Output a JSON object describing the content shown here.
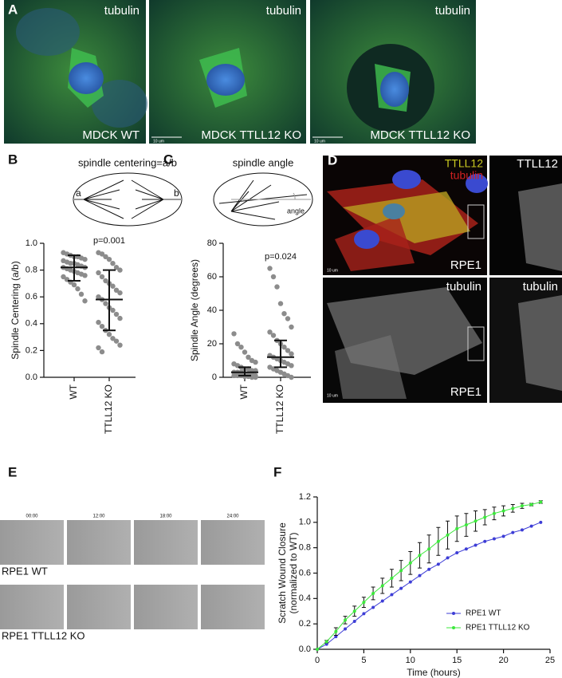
{
  "figure": {
    "panel_labels": [
      "A",
      "B",
      "C",
      "D",
      "E",
      "F"
    ],
    "panel_a": {
      "images": [
        {
          "stain": "tubulin",
          "cell": "MDCK WT"
        },
        {
          "stain": "tubulin",
          "cell": "MDCK TTLL12 KO",
          "scale": "10 um"
        },
        {
          "stain": "tubulin",
          "cell": "MDCK TTLL12 KO",
          "scale": "10 um"
        }
      ]
    },
    "panel_b_diagram": {
      "title": "spindle centering=a/b",
      "left": "a",
      "right": "b"
    },
    "panel_c_diagram": {
      "title": "spindle angle",
      "angle": "angle"
    },
    "panel_d": {
      "top_left": {
        "stains": [
          "TTLL12",
          "tubulin"
        ],
        "cell": "RPE1",
        "scale": "10 um"
      },
      "top_right": {
        "stain": "TTLL12"
      },
      "bottom_left": {
        "stain": "tubulin",
        "cell": "RPE1",
        "scale": "10 um"
      },
      "bottom_right": {
        "stain": "tubulin"
      }
    },
    "panel_e": {
      "times": [
        "00:00",
        "12:00",
        "18:00",
        "24:00"
      ],
      "rows": [
        "RPE1 WT",
        "RPE1 TTLL12 KO"
      ]
    }
  },
  "chart_data": [
    {
      "type": "strip",
      "y_label": "Spindle Centering (a/b)",
      "categories": [
        "WT",
        "TTLL12 KO"
      ],
      "annotation": "p=0.001",
      "color": "#8c8c8c",
      "points": [
        [
          0.93,
          0.92,
          0.91,
          0.9,
          0.9,
          0.89,
          0.88,
          0.87,
          0.86,
          0.85,
          0.85,
          0.84,
          0.83,
          0.82,
          0.82,
          0.81,
          0.8,
          0.79,
          0.78,
          0.77,
          0.76,
          0.75,
          0.73,
          0.71,
          0.69,
          0.66,
          0.62,
          0.57
        ],
        [
          0.93,
          0.92,
          0.9,
          0.88,
          0.85,
          0.82,
          0.8,
          0.78,
          0.75,
          0.72,
          0.7,
          0.68,
          0.65,
          0.63,
          0.6,
          0.58,
          0.55,
          0.52,
          0.5,
          0.47,
          0.44,
          0.41,
          0.38,
          0.35,
          0.32,
          0.29,
          0.27,
          0.24,
          0.22,
          0.19
        ]
      ],
      "center": [
        0.82,
        0.58
      ],
      "lower": [
        0.72,
        0.35
      ],
      "upper": [
        0.91,
        0.8
      ],
      "ylim": [
        0,
        1
      ],
      "yticks": [
        {
          "value": 0,
          "label": "0.0"
        },
        0.2,
        0.4,
        0.6,
        0.8,
        {
          "value": 1,
          "label": "1.0"
        }
      ]
    },
    {
      "type": "strip",
      "y_label": "Spindle Angle (degrees)",
      "categories": [
        "WT",
        "TTLL12 KO"
      ],
      "annotation": "p=0.024",
      "color": "#8c8c8c",
      "points": [
        [
          26,
          20,
          18,
          15,
          12,
          10,
          9,
          8,
          7,
          6,
          5,
          5,
          4,
          4,
          3,
          3,
          3,
          2,
          2,
          2,
          1,
          1,
          1,
          1,
          0.5,
          0.5,
          0,
          0
        ],
        [
          65,
          60,
          54,
          44,
          38,
          35,
          30,
          27,
          25,
          22,
          20,
          18,
          16,
          14,
          13,
          12,
          11,
          10,
          9,
          8,
          7,
          6,
          5,
          4,
          3,
          2,
          1,
          0
        ]
      ],
      "center": [
        3,
        12
      ],
      "lower": [
        1,
        6
      ],
      "upper": [
        6,
        22
      ],
      "ylim": [
        0,
        80
      ],
      "yticks": [
        0,
        20,
        40,
        60,
        80
      ]
    },
    {
      "type": "line",
      "x_label": "Time (hours)",
      "y_label": [
        "Scratch Wound Closure",
        "(normalized to WT)"
      ],
      "x": [
        0,
        1,
        2,
        3,
        4,
        5,
        6,
        7,
        8,
        9,
        10,
        11,
        12,
        13,
        14,
        15,
        16,
        17,
        18,
        19,
        20,
        21,
        22,
        23,
        24
      ],
      "series": [
        {
          "name": "RPE1 WT",
          "color": "#3d3dd6",
          "values": [
            0,
            0.04,
            0.1,
            0.16,
            0.22,
            0.28,
            0.33,
            0.38,
            0.43,
            0.48,
            0.53,
            0.58,
            0.63,
            0.67,
            0.72,
            0.76,
            0.79,
            0.82,
            0.85,
            0.87,
            0.89,
            0.92,
            0.94,
            0.97,
            1.0
          ]
        },
        {
          "name": "RPE1 TTLL12 KO",
          "color": "#3ce83c",
          "values": [
            0,
            0.06,
            0.14,
            0.23,
            0.3,
            0.37,
            0.44,
            0.5,
            0.56,
            0.62,
            0.68,
            0.74,
            0.79,
            0.85,
            0.9,
            0.95,
            0.98,
            1.01,
            1.04,
            1.07,
            1.09,
            1.11,
            1.13,
            1.14,
            1.16
          ],
          "errors": [
            0,
            0.01,
            0.03,
            0.03,
            0.04,
            0.04,
            0.05,
            0.06,
            0.07,
            0.08,
            0.09,
            0.1,
            0.11,
            0.11,
            0.11,
            0.1,
            0.09,
            0.08,
            0.06,
            0.05,
            0.04,
            0.03,
            0.02,
            0.01,
            0.01
          ]
        }
      ],
      "xlim": [
        0,
        25
      ],
      "xticks": [
        0,
        5,
        10,
        15,
        20,
        25
      ],
      "ylim": [
        0,
        1.2
      ],
      "yticks": [
        {
          "value": 0,
          "label": "0.0"
        },
        0.2,
        0.4,
        0.6,
        0.8,
        {
          "value": 1,
          "label": "1.0"
        },
        1.2
      ],
      "legend": "lower right"
    }
  ]
}
